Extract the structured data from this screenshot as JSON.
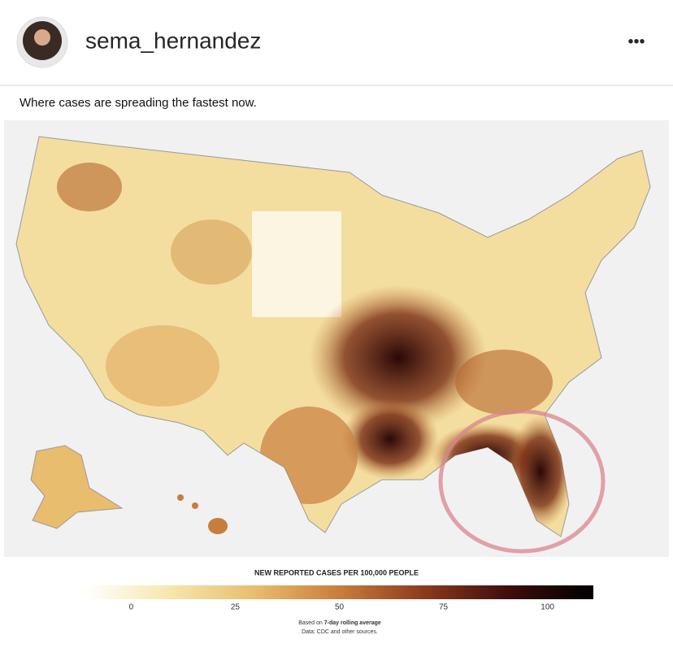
{
  "header": {
    "username": "sema_hernandez",
    "menu": "•••"
  },
  "post": {
    "title": "Where cases are spreading the fastest now.",
    "legend": {
      "title": "NEW REPORTED CASES PER 100,000 PEOPLE",
      "range": [
        -11,
        111
      ],
      "ticks": [
        0,
        25,
        50,
        75,
        100
      ],
      "colors": [
        "#ffffff",
        "#f6e6ae",
        "#e9bd6e",
        "#c97d3d",
        "#8c3a1d",
        "#3e0d0d",
        "#000000"
      ],
      "note_prefix": "Based on",
      "note_bold": "7-day rolling average",
      "source": "Data: CDC and other sources."
    }
  }
}
